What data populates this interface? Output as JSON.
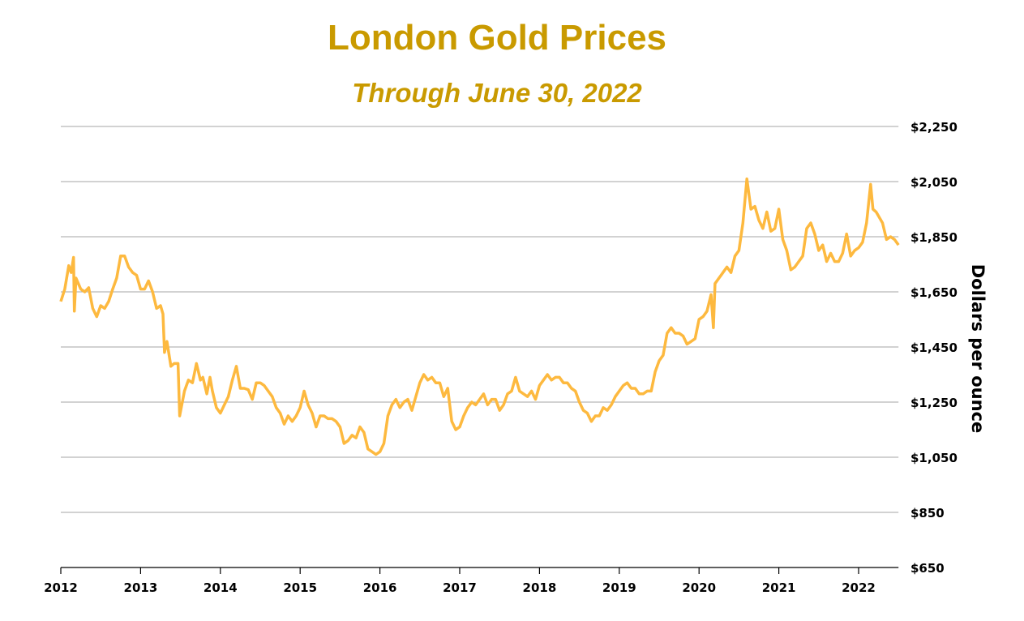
{
  "chart_data": {
    "type": "line",
    "title": "London Gold Prices",
    "subtitle": "Through June 30, 2022",
    "xlabel": "",
    "ylabel": "Dollars per ounce",
    "ylim": [
      650,
      2250
    ],
    "xlim": [
      2012,
      2022.5
    ],
    "grid": true,
    "y_ticks": [
      "$650",
      "$850",
      "$1,050",
      "$1,250",
      "$1,450",
      "$1,650",
      "$1,850",
      "$2,050",
      "$2,250"
    ],
    "y_tick_values": [
      650,
      850,
      1050,
      1250,
      1450,
      1650,
      1850,
      2050,
      2250
    ],
    "x_ticks": [
      "2012",
      "2013",
      "2014",
      "2015",
      "2016",
      "2017",
      "2018",
      "2019",
      "2020",
      "2021",
      "2022"
    ],
    "line_color": "#FDB93F",
    "title_color": "#C99A00",
    "series": [
      {
        "name": "Gold price",
        "x": [
          2012.0,
          2012.05,
          2012.1,
          2012.13,
          2012.16,
          2012.17,
          2012.19,
          2012.25,
          2012.3,
          2012.35,
          2012.4,
          2012.45,
          2012.5,
          2012.55,
          2012.6,
          2012.65,
          2012.7,
          2012.75,
          2012.8,
          2012.85,
          2012.9,
          2012.95,
          2013.0,
          2013.05,
          2013.1,
          2013.15,
          2013.2,
          2013.25,
          2013.28,
          2013.3,
          2013.33,
          2013.38,
          2013.42,
          2013.47,
          2013.49,
          2013.55,
          2013.6,
          2013.65,
          2013.7,
          2013.75,
          2013.78,
          2013.83,
          2013.87,
          2013.9,
          2013.95,
          2014.0,
          2014.05,
          2014.1,
          2014.15,
          2014.2,
          2014.25,
          2014.3,
          2014.35,
          2014.4,
          2014.45,
          2014.5,
          2014.55,
          2014.6,
          2014.65,
          2014.7,
          2014.75,
          2014.8,
          2014.85,
          2014.9,
          2014.95,
          2015.0,
          2015.05,
          2015.1,
          2015.15,
          2015.2,
          2015.25,
          2015.3,
          2015.35,
          2015.4,
          2015.45,
          2015.5,
          2015.55,
          2015.6,
          2015.65,
          2015.7,
          2015.75,
          2015.8,
          2015.85,
          2015.9,
          2015.95,
          2016.0,
          2016.05,
          2016.1,
          2016.15,
          2016.2,
          2016.25,
          2016.3,
          2016.35,
          2016.4,
          2016.45,
          2016.5,
          2016.55,
          2016.6,
          2016.65,
          2016.7,
          2016.75,
          2016.8,
          2016.85,
          2016.9,
          2016.95,
          2017.0,
          2017.05,
          2017.1,
          2017.15,
          2017.2,
          2017.25,
          2017.3,
          2017.35,
          2017.4,
          2017.45,
          2017.5,
          2017.55,
          2017.6,
          2017.65,
          2017.7,
          2017.75,
          2017.8,
          2017.85,
          2017.9,
          2017.95,
          2018.0,
          2018.05,
          2018.1,
          2018.15,
          2018.2,
          2018.25,
          2018.3,
          2018.35,
          2018.4,
          2018.45,
          2018.5,
          2018.55,
          2018.6,
          2018.65,
          2018.7,
          2018.75,
          2018.8,
          2018.85,
          2018.9,
          2018.95,
          2019.0,
          2019.05,
          2019.1,
          2019.15,
          2019.2,
          2019.25,
          2019.3,
          2019.35,
          2019.4,
          2019.45,
          2019.5,
          2019.55,
          2019.6,
          2019.65,
          2019.7,
          2019.75,
          2019.8,
          2019.85,
          2019.9,
          2019.95,
          2020.0,
          2020.05,
          2020.1,
          2020.15,
          2020.18,
          2020.2,
          2020.25,
          2020.3,
          2020.35,
          2020.4,
          2020.45,
          2020.5,
          2020.55,
          2020.6,
          2020.65,
          2020.7,
          2020.75,
          2020.8,
          2020.85,
          2020.9,
          2020.95,
          2021.0,
          2021.05,
          2021.1,
          2021.15,
          2021.2,
          2021.25,
          2021.3,
          2021.35,
          2021.4,
          2021.45,
          2021.5,
          2021.55,
          2021.6,
          2021.65,
          2021.7,
          2021.75,
          2021.8,
          2021.85,
          2021.9,
          2021.95,
          2022.0,
          2022.05,
          2022.1,
          2022.15,
          2022.18,
          2022.22,
          2022.3,
          2022.35,
          2022.4,
          2022.45,
          2022.5
        ],
        "values": [
          1615,
          1660,
          1745,
          1720,
          1775,
          1580,
          1700,
          1660,
          1650,
          1665,
          1590,
          1560,
          1600,
          1590,
          1615,
          1660,
          1700,
          1780,
          1780,
          1740,
          1720,
          1710,
          1660,
          1660,
          1690,
          1650,
          1590,
          1600,
          1570,
          1430,
          1470,
          1380,
          1390,
          1390,
          1200,
          1290,
          1330,
          1320,
          1390,
          1330,
          1340,
          1280,
          1340,
          1290,
          1230,
          1210,
          1240,
          1270,
          1330,
          1380,
          1300,
          1300,
          1295,
          1260,
          1320,
          1320,
          1310,
          1290,
          1270,
          1230,
          1210,
          1170,
          1200,
          1180,
          1200,
          1230,
          1290,
          1240,
          1210,
          1160,
          1200,
          1200,
          1190,
          1190,
          1180,
          1160,
          1100,
          1110,
          1130,
          1120,
          1160,
          1140,
          1080,
          1070,
          1060,
          1070,
          1100,
          1200,
          1240,
          1260,
          1230,
          1250,
          1260,
          1220,
          1270,
          1320,
          1350,
          1330,
          1340,
          1320,
          1320,
          1270,
          1300,
          1180,
          1150,
          1160,
          1200,
          1230,
          1250,
          1240,
          1260,
          1280,
          1240,
          1260,
          1260,
          1220,
          1240,
          1280,
          1290,
          1340,
          1290,
          1280,
          1270,
          1290,
          1260,
          1310,
          1330,
          1350,
          1330,
          1340,
          1340,
          1320,
          1320,
          1300,
          1290,
          1250,
          1220,
          1210,
          1180,
          1200,
          1200,
          1230,
          1220,
          1240,
          1270,
          1290,
          1310,
          1320,
          1300,
          1300,
          1280,
          1280,
          1290,
          1290,
          1360,
          1400,
          1420,
          1500,
          1520,
          1500,
          1500,
          1490,
          1460,
          1470,
          1480,
          1550,
          1560,
          1580,
          1640,
          1520,
          1680,
          1700,
          1720,
          1740,
          1720,
          1780,
          1800,
          1900,
          2060,
          1950,
          1960,
          1910,
          1880,
          1940,
          1870,
          1880,
          1950,
          1840,
          1800,
          1730,
          1740,
          1760,
          1780,
          1880,
          1900,
          1860,
          1800,
          1820,
          1760,
          1790,
          1760,
          1760,
          1790,
          1860,
          1780,
          1800,
          1810,
          1830,
          1900,
          2040,
          1950,
          1940,
          1900,
          1840,
          1850,
          1840,
          1820
        ]
      }
    ]
  }
}
